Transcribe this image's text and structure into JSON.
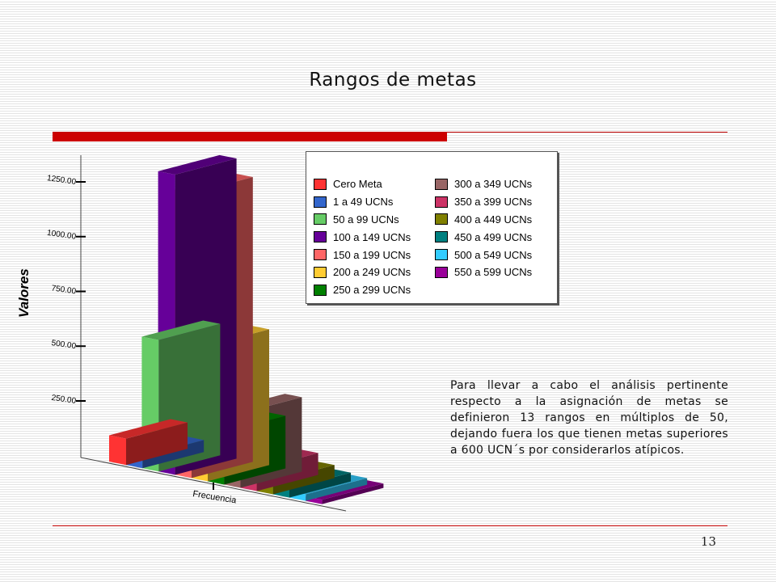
{
  "slide": {
    "title": "Rangos de metas",
    "page_number": "13",
    "description": "Para llevar a cabo el análisis pertinente respecto a la asignación de metas se definieron 13 rangos en múltiplos de 50, dejando fuera los que tienen metas superiores a 600 UCN´s por considerarlos atípicos.",
    "accent_color": "#cc0000"
  },
  "chart_data": {
    "type": "bar",
    "title": "",
    "xlabel": "Frecuencia",
    "ylabel": "Valores",
    "ylim": [
      0,
      1250
    ],
    "yticks": [
      "1250.00",
      "1000.00",
      "750.00",
      "500.00",
      "250.00"
    ],
    "ytick_values": [
      1250,
      1000,
      750,
      500,
      250
    ],
    "legend_position": "top-right",
    "categories": [
      "Cero Meta",
      "1 a 49 UCNs",
      "50 a 99 UCNs",
      "100 a 149 UCNs",
      "150 a 199 UCNs",
      "200 a 249 UCNs",
      "250 a 299 UCNs",
      "300 a 349 UCNs",
      "350 a 399 UCNs",
      "400 a 449 UCNs",
      "450 a 499 UCNs",
      "500 a 549 UCNs",
      "550 a 599 UCNs"
    ],
    "values": [
      120,
      55,
      600,
      1370,
      1300,
      620,
      240,
      340,
      100,
      60,
      40,
      30,
      20
    ],
    "colors": [
      "#ff3333",
      "#3366cc",
      "#66cc66",
      "#660099",
      "#ff6666",
      "#ffcc33",
      "#008000",
      "#996666",
      "#cc3366",
      "#808000",
      "#008080",
      "#33ccff",
      "#990099"
    ]
  }
}
